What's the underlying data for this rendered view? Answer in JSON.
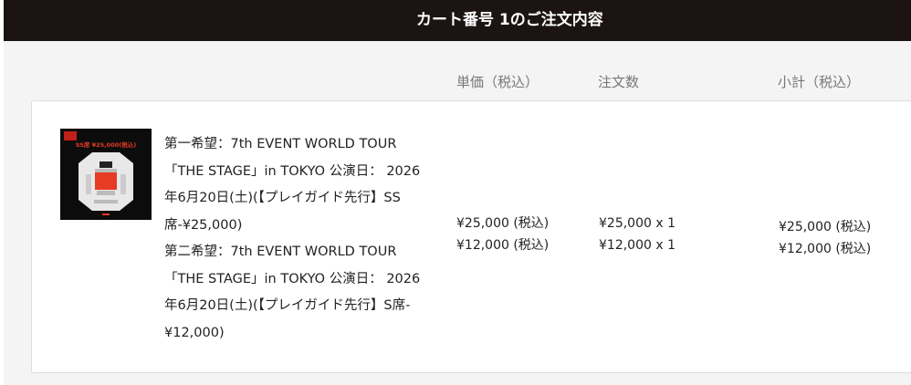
{
  "header": {
    "title": "カート番号 1のご注文内容"
  },
  "columns": {
    "unit_price": "単価（税込）",
    "quantity": "注文数",
    "subtotal": "小計（税込）"
  },
  "colors": {
    "header_bg": "#1c1413",
    "accent": "#e63b24"
  },
  "item": {
    "thumbnail": {
      "label": "SS席 ¥25,000(税込)",
      "logo": "THE STAGE"
    },
    "description_lines": [
      "第一希望：7th EVENT WORLD TOUR",
      "「THE STAGE」in TOKYO 公演日： 2026",
      "年6月20日(土)(【プレイガイド先行】SS",
      "席-¥25,000)",
      "第二希望：7th EVENT WORLD TOUR",
      "「THE STAGE」in TOKYO 公演日： 2026",
      "年6月20日(土)(【プレイガイド先行】S席-",
      "¥12,000)"
    ],
    "unit_prices": [
      "¥25,000 (税込)",
      "¥12,000 (税込)"
    ],
    "quantities": [
      "¥25,000 x 1",
      "¥12,000 x 1"
    ],
    "subtotals": [
      "¥25,000 (税込)",
      "¥12,000 (税込)"
    ]
  }
}
